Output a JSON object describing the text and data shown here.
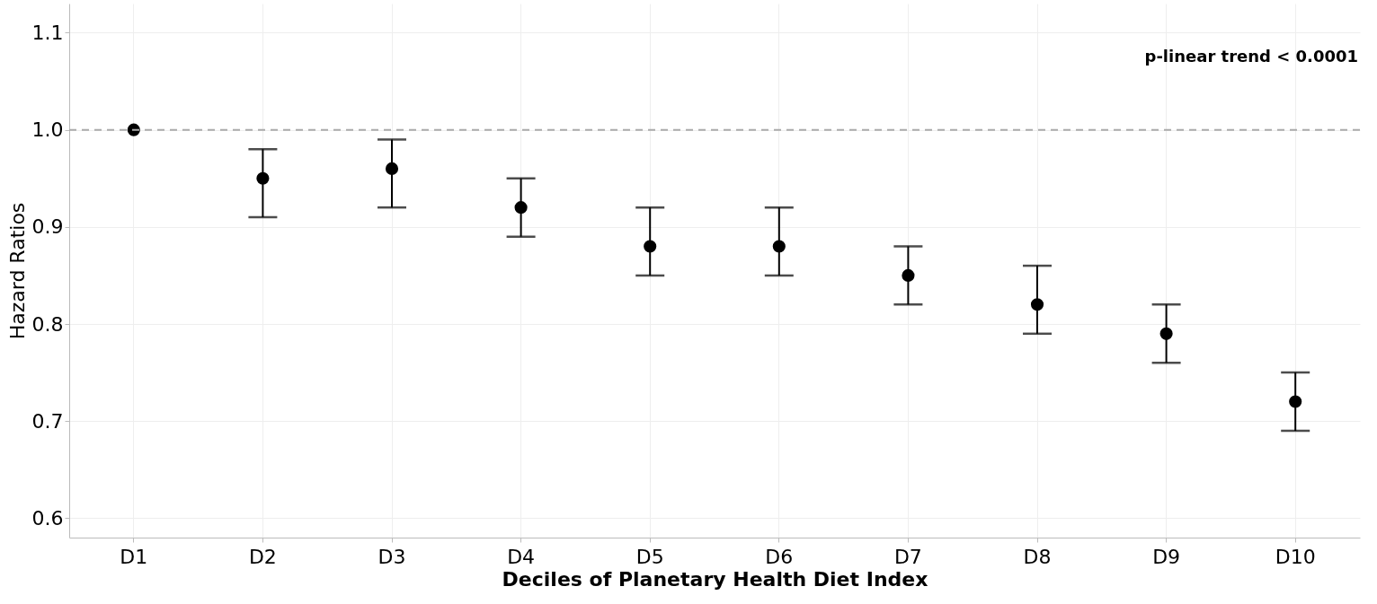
{
  "chart_data": {
    "type": "scatter",
    "xlabel": "Deciles of Planetary Health Diet Index",
    "ylabel": "Hazard Ratios",
    "categories": [
      "D1",
      "D2",
      "D3",
      "D4",
      "D5",
      "D6",
      "D7",
      "D8",
      "D9",
      "D10"
    ],
    "series": [
      {
        "color": "#000000",
        "values": [
          1.0,
          0.95,
          0.96,
          0.92,
          0.88,
          0.88,
          0.85,
          0.82,
          0.79,
          0.72
        ],
        "errors": [
          null,
          [
            0.91,
            0.98
          ],
          [
            0.92,
            0.99
          ],
          [
            0.89,
            0.95
          ],
          [
            0.85,
            0.92
          ],
          [
            0.85,
            0.92
          ],
          [
            0.82,
            0.88
          ],
          [
            0.79,
            0.86
          ],
          [
            0.76,
            0.82
          ],
          [
            0.69,
            0.75
          ]
        ]
      }
    ],
    "ylim": [
      0.58,
      1.13
    ],
    "yticks": [
      0.6,
      0.7,
      0.8,
      0.9,
      {
        "value": 1,
        "label": "1.0"
      },
      1.1
    ],
    "ref_lines": [
      {
        "axis": "y",
        "value": 1.0,
        "color": "#aaaaaa",
        "line_style": "dashed"
      }
    ],
    "annotations": [
      "p-linear trend < 0.0001"
    ],
    "grid": true,
    "marker": "circle"
  }
}
